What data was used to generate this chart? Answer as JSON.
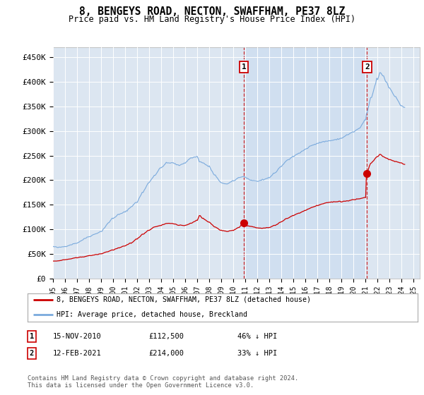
{
  "title": "8, BENGEYS ROAD, NECTON, SWAFFHAM, PE37 8LZ",
  "subtitle": "Price paid vs. HM Land Registry's House Price Index (HPI)",
  "ylim": [
    0,
    470000
  ],
  "yticks": [
    0,
    50000,
    100000,
    150000,
    200000,
    250000,
    300000,
    350000,
    400000,
    450000
  ],
  "ytick_labels": [
    "£0",
    "£50K",
    "£100K",
    "£150K",
    "£200K",
    "£250K",
    "£300K",
    "£350K",
    "£400K",
    "£450K"
  ],
  "plot_bg_color": "#dce6f1",
  "shade_color": "#c8d8ee",
  "legend_entries": [
    "8, BENGEYS ROAD, NECTON, SWAFFHAM, PE37 8LZ (detached house)",
    "HPI: Average price, detached house, Breckland"
  ],
  "line1_color": "#cc0000",
  "line2_color": "#7aaadd",
  "annotation1": {
    "label": "1",
    "date": "15-NOV-2010",
    "price": "£112,500",
    "pct": "46% ↓ HPI"
  },
  "annotation2": {
    "label": "2",
    "date": "12-FEB-2021",
    "price": "£214,000",
    "pct": "33% ↓ HPI"
  },
  "footnote": "Contains HM Land Registry data © Crown copyright and database right 2024.\nThis data is licensed under the Open Government Licence v3.0.",
  "sale1_x": 2010.88,
  "sale1_y": 112500,
  "sale2_x": 2021.12,
  "sale2_y": 214000,
  "xlim": [
    1995,
    2025.5
  ]
}
